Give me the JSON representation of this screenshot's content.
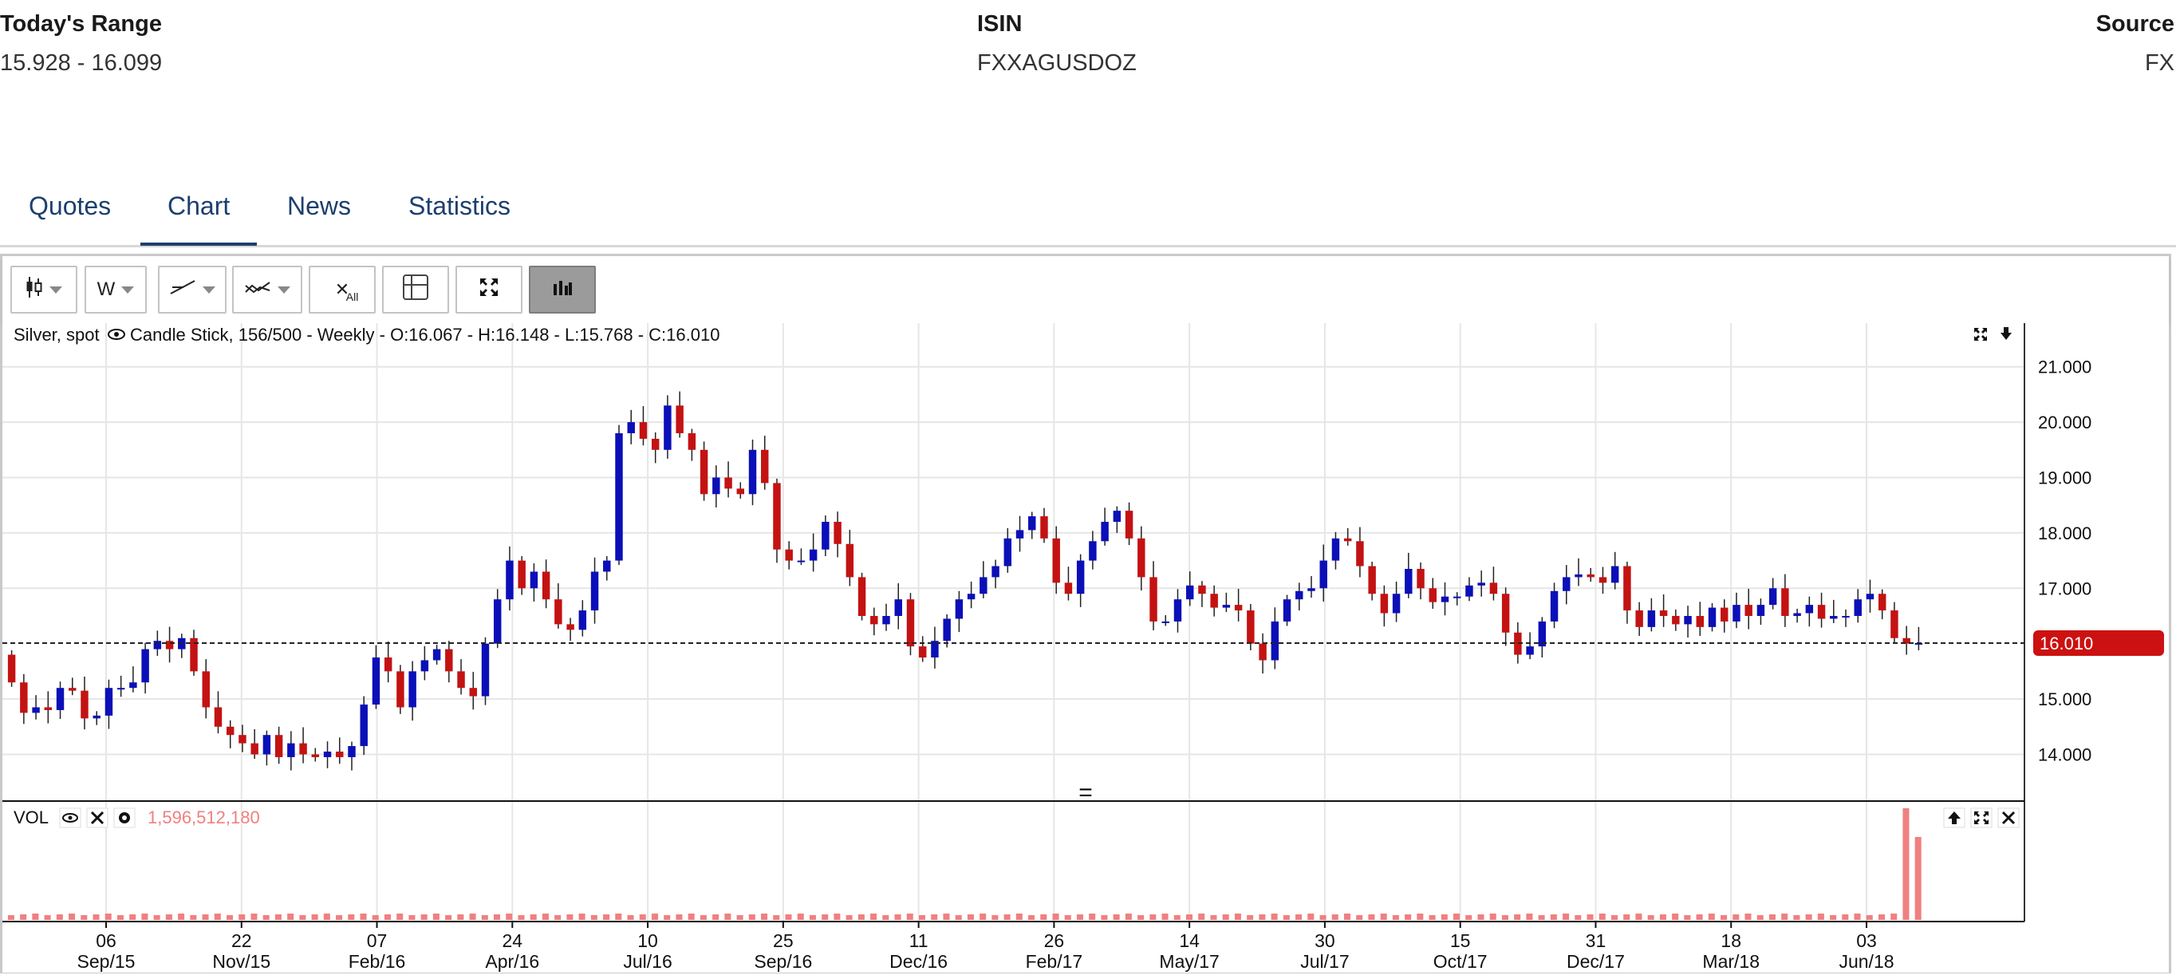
{
  "header": {
    "range": {
      "label": "Today's Range",
      "value": "15.928 - 16.099"
    },
    "isin": {
      "label": "ISIN",
      "value": "FXXAGUSDOZ"
    },
    "source": {
      "label": "Source",
      "value": "FX"
    }
  },
  "tabs": [
    {
      "label": "Quotes",
      "active": false
    },
    {
      "label": "Chart",
      "active": true
    },
    {
      "label": "News",
      "active": false
    },
    {
      "label": "Statistics",
      "active": false
    }
  ],
  "toolbar": {
    "chart_type_icon": "candlestick-icon",
    "period_label": "W",
    "draw_icon": "trendline-icon",
    "indicator_icon": "indicator-icon",
    "clear_all_label": "All",
    "crosshair_icon": "crosshair-icon",
    "fullscreen_icon": "fullscreen-icon",
    "volume_icon": "volume-bars-icon"
  },
  "chart_legend": {
    "instrument": "Silver, spot",
    "details": "Candle Stick, 156/500 - Weekly - O:16.067 - H:16.148 - L:15.768 - C:16.010"
  },
  "last_price_tag": "16.010",
  "volume_panel": {
    "label": "VOL",
    "value": "1,596,512,180"
  },
  "colors": {
    "up": "#0b0fb8",
    "down": "#c41212",
    "volume": "#f08080",
    "price_tag": "#cc1111",
    "tab_text": "#1d3f6e"
  },
  "chart_data": {
    "type": "candlestick",
    "title": "Silver, spot",
    "period": "Weekly",
    "ylim": [
      13.2,
      21.5
    ],
    "y_ticks": [
      "21.000",
      "20.000",
      "19.000",
      "18.000",
      "17.000",
      "15.000",
      "14.000"
    ],
    "last_close": 16.01,
    "x_tick_labels": [
      {
        "day": "06",
        "month": "Sep/15"
      },
      {
        "day": "22",
        "month": "Nov/15"
      },
      {
        "day": "07",
        "month": "Feb/16"
      },
      {
        "day": "24",
        "month": "Apr/16"
      },
      {
        "day": "10",
        "month": "Jul/16"
      },
      {
        "day": "25",
        "month": "Sep/16"
      },
      {
        "day": "11",
        "month": "Dec/16"
      },
      {
        "day": "26",
        "month": "Feb/17"
      },
      {
        "day": "14",
        "month": "May/17"
      },
      {
        "day": "30",
        "month": "Jul/17"
      },
      {
        "day": "15",
        "month": "Oct/17"
      },
      {
        "day": "31",
        "month": "Dec/17"
      },
      {
        "day": "18",
        "month": "Mar/18"
      },
      {
        "day": "03",
        "month": "Jun/18"
      }
    ],
    "close_series_weekly": [
      15.3,
      14.75,
      14.85,
      14.8,
      15.2,
      15.15,
      14.65,
      14.7,
      15.2,
      15.2,
      15.3,
      15.9,
      16.05,
      15.9,
      16.1,
      15.5,
      14.85,
      14.5,
      14.35,
      14.2,
      14.0,
      14.35,
      13.95,
      14.2,
      14.0,
      13.95,
      14.05,
      13.95,
      14.15,
      14.9,
      15.75,
      15.5,
      14.85,
      15.5,
      15.7,
      15.9,
      15.5,
      15.2,
      15.05,
      16.0,
      16.8,
      17.5,
      17.0,
      17.3,
      16.8,
      16.35,
      16.25,
      16.6,
      17.3,
      17.5,
      19.8,
      20.0,
      19.7,
      19.5,
      20.3,
      19.8,
      19.5,
      18.7,
      19.0,
      18.8,
      18.7,
      19.5,
      18.9,
      17.7,
      17.5,
      17.5,
      17.7,
      18.2,
      17.8,
      17.2,
      16.5,
      16.35,
      16.5,
      16.8,
      15.95,
      15.75,
      16.05,
      16.45,
      16.8,
      16.9,
      17.2,
      17.4,
      17.9,
      18.05,
      18.3,
      17.9,
      17.1,
      16.9,
      17.5,
      17.85,
      18.2,
      18.4,
      17.9,
      17.2,
      16.4,
      16.4,
      16.8,
      17.05,
      16.9,
      16.65,
      16.7,
      16.6,
      16.0,
      15.7,
      16.4,
      16.8,
      16.95,
      17.0,
      17.5,
      17.9,
      17.85,
      17.4,
      16.9,
      16.55,
      16.9,
      17.35,
      17.0,
      16.75,
      16.85,
      16.85,
      17.05,
      17.1,
      16.9,
      16.2,
      15.8,
      15.95,
      16.4,
      16.95,
      17.2,
      17.25,
      17.2,
      17.1,
      17.4,
      16.6,
      16.3,
      16.6,
      16.5,
      16.35,
      16.5,
      16.3,
      16.65,
      16.4,
      16.7,
      16.5,
      16.7,
      17.0,
      16.5,
      16.55,
      16.7,
      16.45,
      16.5,
      16.5,
      16.8,
      16.9,
      16.6,
      16.1,
      16.0,
      16.01
    ],
    "volume_series": "near-zero for most weeks; spikes in the last two weeks, latest 1,596,512,180"
  }
}
